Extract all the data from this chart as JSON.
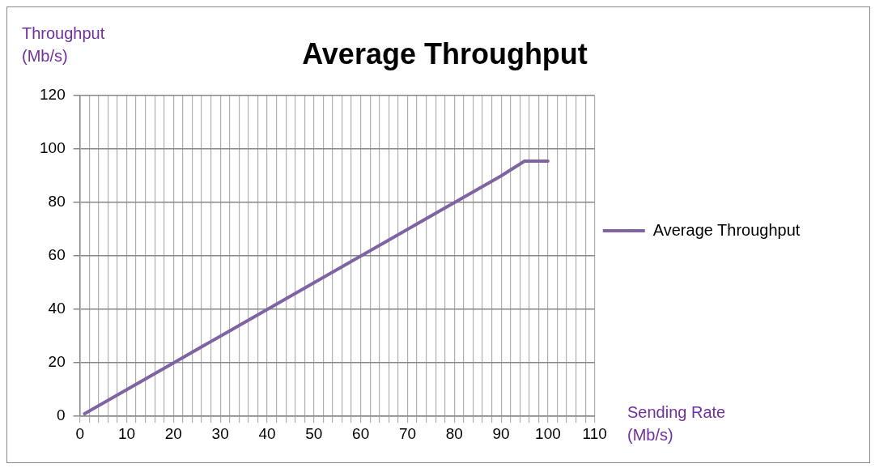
{
  "chart_data": {
    "type": "line",
    "title": "Average Throughput",
    "xlabel": "Sending Rate\n(Mb/s)",
    "ylabel": "Throughput\n(Mb/s)",
    "series": [
      {
        "name": "Average Throughput",
        "color": "#8064a2",
        "x": [
          1,
          10,
          20,
          30,
          40,
          50,
          60,
          70,
          80,
          90,
          95,
          100
        ],
        "values": [
          1,
          10,
          20,
          30,
          40,
          50,
          60,
          70,
          80,
          90,
          95.5,
          95.5
        ]
      }
    ],
    "xlim": [
      0,
      110
    ],
    "xticks": [
      0,
      {
        "value": 2,
        "label": null
      },
      {
        "value": 4,
        "label": null
      },
      {
        "value": 6,
        "label": null
      },
      {
        "value": 8,
        "label": null
      },
      10,
      {
        "value": 12,
        "label": null
      },
      {
        "value": 14,
        "label": null
      },
      {
        "value": 16,
        "label": null
      },
      {
        "value": 18,
        "label": null
      },
      20,
      {
        "value": 22,
        "label": null
      },
      {
        "value": 24,
        "label": null
      },
      {
        "value": 26,
        "label": null
      },
      {
        "value": 28,
        "label": null
      },
      30,
      {
        "value": 32,
        "label": null
      },
      {
        "value": 34,
        "label": null
      },
      {
        "value": 36,
        "label": null
      },
      {
        "value": 38,
        "label": null
      },
      40,
      {
        "value": 42,
        "label": null
      },
      {
        "value": 44,
        "label": null
      },
      {
        "value": 46,
        "label": null
      },
      {
        "value": 48,
        "label": null
      },
      50,
      {
        "value": 52,
        "label": null
      },
      {
        "value": 54,
        "label": null
      },
      {
        "value": 56,
        "label": null
      },
      {
        "value": 58,
        "label": null
      },
      60,
      {
        "value": 62,
        "label": null
      },
      {
        "value": 64,
        "label": null
      },
      {
        "value": 66,
        "label": null
      },
      {
        "value": 68,
        "label": null
      },
      70,
      {
        "value": 72,
        "label": null
      },
      {
        "value": 74,
        "label": null
      },
      {
        "value": 76,
        "label": null
      },
      {
        "value": 78,
        "label": null
      },
      80,
      {
        "value": 82,
        "label": null
      },
      {
        "value": 84,
        "label": null
      },
      {
        "value": 86,
        "label": null
      },
      {
        "value": 88,
        "label": null
      },
      90,
      {
        "value": 92,
        "label": null
      },
      {
        "value": 94,
        "label": null
      },
      {
        "value": 96,
        "label": null
      },
      {
        "value": 98,
        "label": null
      },
      100,
      {
        "value": 102,
        "label": null
      },
      {
        "value": 104,
        "label": null
      },
      {
        "value": 106,
        "label": null
      },
      {
        "value": 108,
        "label": null
      },
      110
    ],
    "ylim": [
      0,
      120
    ],
    "yticks": [
      0,
      20,
      40,
      60,
      80,
      100,
      120
    ],
    "grid": true,
    "legend": "right",
    "marker": "none",
    "line_style": "solid"
  }
}
